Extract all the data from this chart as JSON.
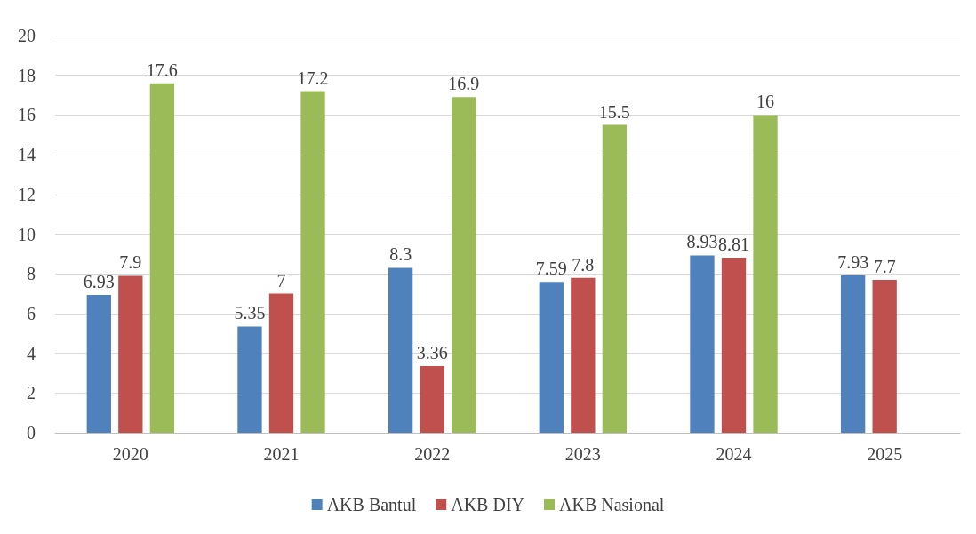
{
  "chart_data": {
    "type": "bar",
    "categories": [
      "2020",
      "2021",
      "2022",
      "2023",
      "2024",
      "2025"
    ],
    "series": [
      {
        "name": "AKB Bantul",
        "color": "#4f81bd",
        "values": [
          6.93,
          5.35,
          8.3,
          7.59,
          8.93,
          7.93
        ]
      },
      {
        "name": "AKB DIY",
        "color": "#c0504d",
        "values": [
          7.9,
          7,
          3.36,
          7.8,
          8.81,
          7.7
        ]
      },
      {
        "name": "AKB Nasional",
        "color": "#9bbb59",
        "values": [
          17.6,
          17.2,
          16.9,
          15.5,
          16,
          null
        ]
      }
    ],
    "ylim": [
      0,
      20
    ],
    "yticks": [
      0,
      2,
      4,
      6,
      8,
      10,
      12,
      14,
      16,
      18,
      20
    ],
    "grid": "y",
    "legend": "bottom",
    "data_labels": true
  }
}
